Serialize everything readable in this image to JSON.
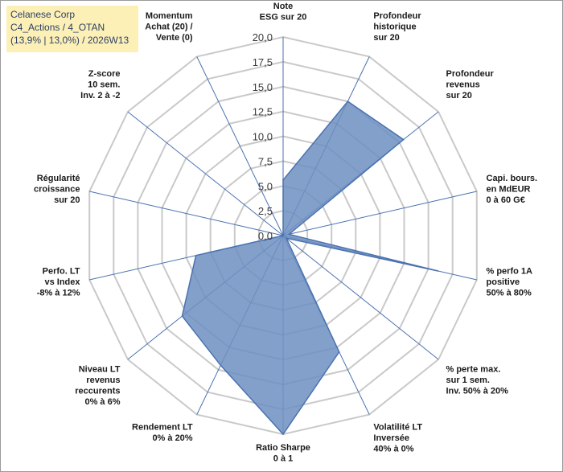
{
  "title_box": {
    "line1": "Celanese Corp",
    "line2": "C4_Actions / 4_OTAN",
    "line3": "(13,9% | 13,0%) / 2026W13"
  },
  "chart_data": {
    "type": "radar",
    "rmin": 0,
    "rmax": 20,
    "tick_labels": [
      "0,0",
      "2,5",
      "5,0",
      "7,5",
      "10,0",
      "12,5",
      "15,0",
      "17,5",
      "20,0"
    ],
    "axes": [
      {
        "lines": [
          "Note",
          "ESG sur 20"
        ]
      },
      {
        "lines": [
          "Profondeur",
          "historique",
          "sur 20"
        ]
      },
      {
        "lines": [
          "Profondeur",
          "revenus",
          "sur 20"
        ]
      },
      {
        "lines": [
          "Capi. bours.",
          "en MdEUR",
          "0 à 60 G€"
        ]
      },
      {
        "lines": [
          "% perfo 1A",
          "positive",
          "50% à 80%"
        ]
      },
      {
        "lines": [
          "% perte max.",
          "sur 1 sem.",
          "Inv. 50% à 20%"
        ]
      },
      {
        "lines": [
          "Volatilité LT",
          "Inversée",
          "40% à 0%"
        ]
      },
      {
        "lines": [
          "Ratio Sharpe",
          "0 à 1"
        ]
      },
      {
        "lines": [
          "Rendement LT",
          "0% à 20%"
        ]
      },
      {
        "lines": [
          "Niveau LT",
          "revenus",
          "reccurents",
          "0% à 6%"
        ]
      },
      {
        "lines": [
          "Perfo. LT",
          "vs Index",
          "-8% à 12%"
        ]
      },
      {
        "lines": [
          "Régularité",
          "croissance",
          "sur 20"
        ]
      },
      {
        "lines": [
          "Z-score",
          "10 sem.",
          "Inv. 2 à -2"
        ]
      },
      {
        "lines": [
          "Momentum",
          "Achat (20) /",
          "Vente (0)"
        ]
      }
    ],
    "series": [
      {
        "name": "Celanese Corp",
        "values": [
          5.6,
          15.0,
          15.5,
          0.6,
          16.0,
          0.4,
          13.0,
          20.0,
          14.5,
          13.0,
          9.0,
          0,
          0,
          0
        ]
      }
    ],
    "colors": {
      "fill": "#6d8fc1",
      "stroke": "#4a72b0",
      "axis": "#4a72b0",
      "grid": "#c9c9c9"
    }
  }
}
